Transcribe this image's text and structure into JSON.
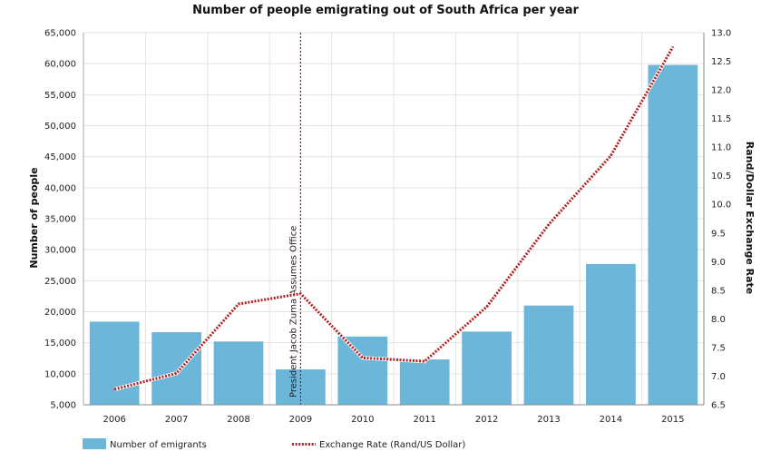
{
  "chart_data": {
    "type": "bar",
    "title": "Number of people emigrating out of South Africa per year",
    "categories": [
      "2006",
      "2007",
      "2008",
      "2009",
      "2010",
      "2011",
      "2012",
      "2013",
      "2014",
      "2015"
    ],
    "series": [
      {
        "name": "Number of emigrants",
        "type": "bar",
        "axis": "left",
        "color": "#6bb6d9",
        "values": [
          18400,
          16700,
          15200,
          10700,
          16000,
          12300,
          16800,
          21000,
          27700,
          59800
        ]
      },
      {
        "name": "Exchange Rate (Rand/US Dollar)",
        "type": "line",
        "axis": "right",
        "color": "#b22222",
        "style": "dotted",
        "values": [
          6.77,
          7.05,
          8.26,
          8.44,
          7.32,
          7.26,
          8.21,
          9.65,
          10.85,
          12.75
        ]
      }
    ],
    "ylabel": "Number of people",
    "y2label": "Rand/Dollar Exchange Rate",
    "ylim": [
      5000,
      65000
    ],
    "y2lim": [
      6.5,
      13.0
    ],
    "yticks": [
      "5,000",
      "10,000",
      "15,000",
      "20,000",
      "25,000",
      "30,000",
      "35,000",
      "40,000",
      "45,000",
      "50,000",
      "55,000",
      "60,000",
      "65,000"
    ],
    "y2ticks": [
      "6.5",
      "7.0",
      "7.5",
      "8.0",
      "8.5",
      "9.0",
      "9.5",
      "10.0",
      "10.5",
      "11.0",
      "11.5",
      "12.0",
      "12.5",
      "13.0"
    ],
    "annotation": {
      "label": "President Jacob Zuma Assumes Office",
      "category": "2009",
      "color": "#cc0000"
    },
    "grid": true,
    "legend_position": "bottom-left"
  }
}
